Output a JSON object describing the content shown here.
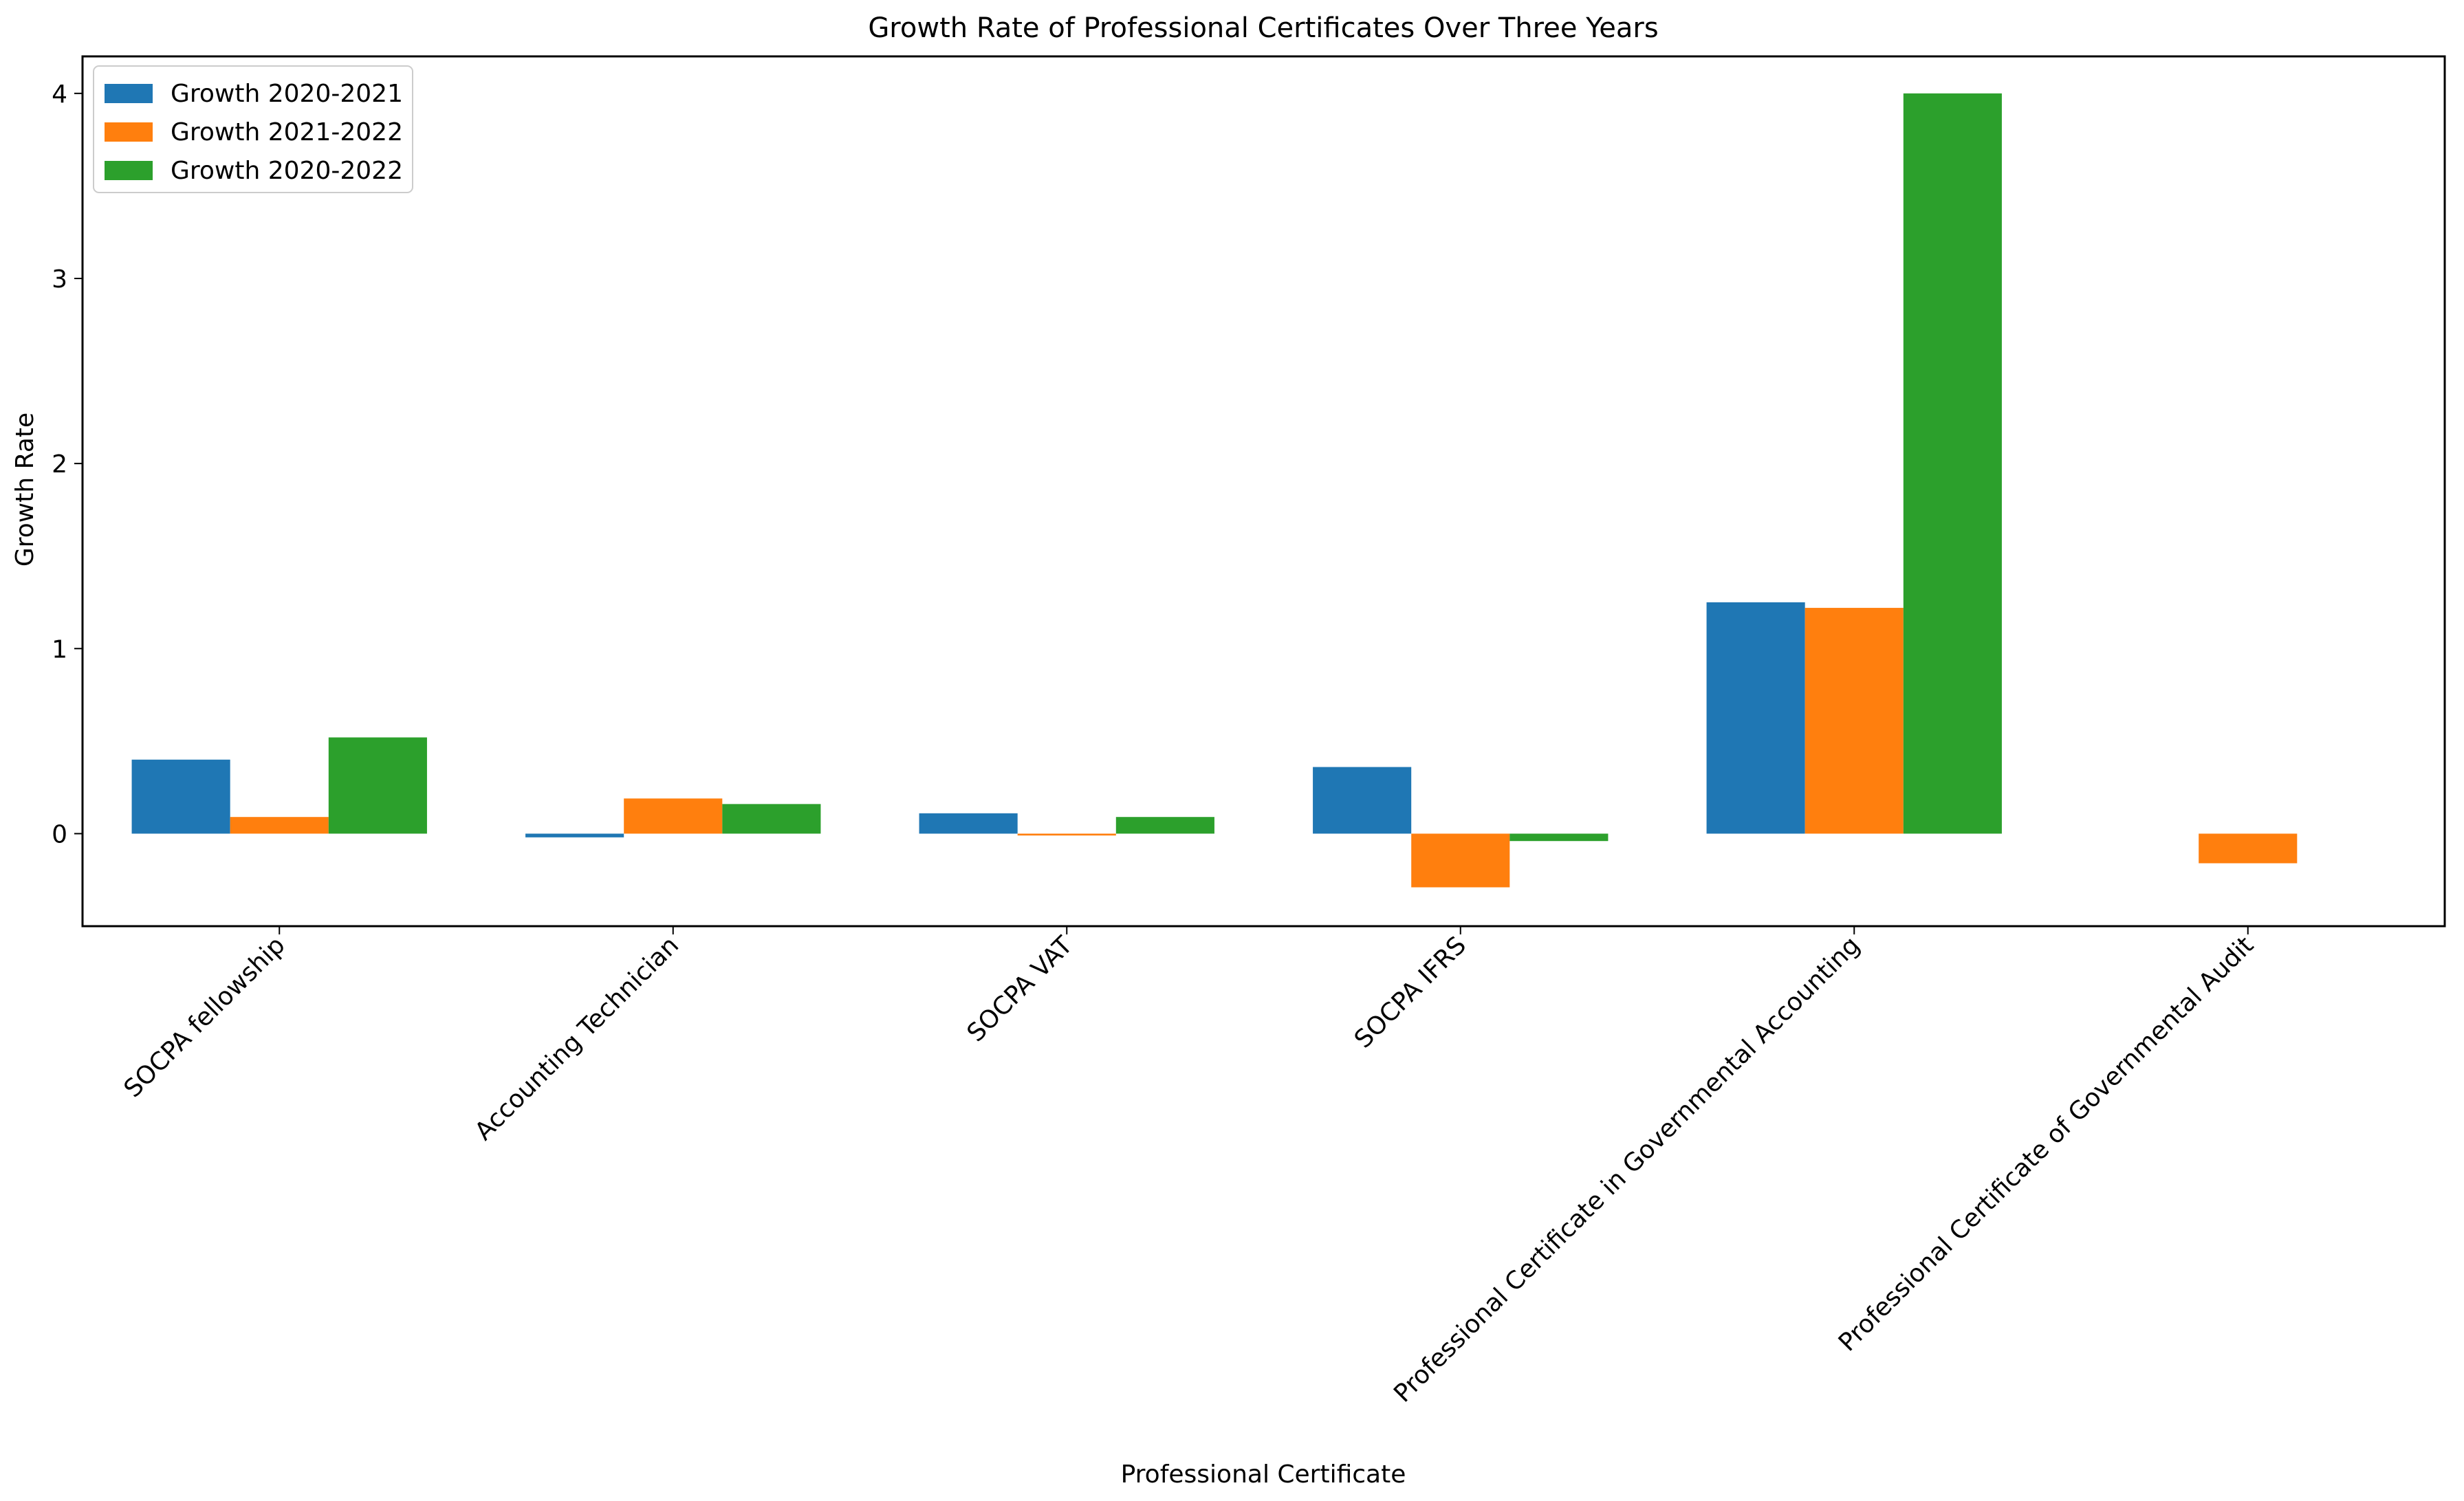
{
  "chart_data": {
    "type": "bar",
    "title": "Growth Rate of Professional Certificates Over Three Years",
    "xlabel": "Professional Certificate",
    "ylabel": "Growth Rate",
    "ylim": [
      -0.5,
      4.2
    ],
    "yticks": [
      0,
      1,
      2,
      3,
      4
    ],
    "ytick_labels": [
      "0",
      "1",
      "2",
      "3",
      "4"
    ],
    "grid": false,
    "legend_position": "top-left",
    "categories": [
      "SOCPA fellowship",
      "Accounting Technician",
      "SOCPA VAT",
      "SOCPA IFRS",
      "Professional Certificate in Governmental Accounting",
      "Professional Certificate of Governmental Audit"
    ],
    "series": [
      {
        "name": "Growth 2020-2021",
        "color": "#1f77b4",
        "values": [
          0.4,
          -0.02,
          0.11,
          0.36,
          1.25,
          null
        ]
      },
      {
        "name": "Growth 2021-2022",
        "color": "#ff7f0e",
        "values": [
          0.09,
          0.19,
          -0.01,
          -0.29,
          1.22,
          -0.16
        ]
      },
      {
        "name": "Growth 2020-2022",
        "color": "#2ca02c",
        "values": [
          0.52,
          0.16,
          0.09,
          -0.04,
          4.0,
          null
        ]
      }
    ]
  }
}
